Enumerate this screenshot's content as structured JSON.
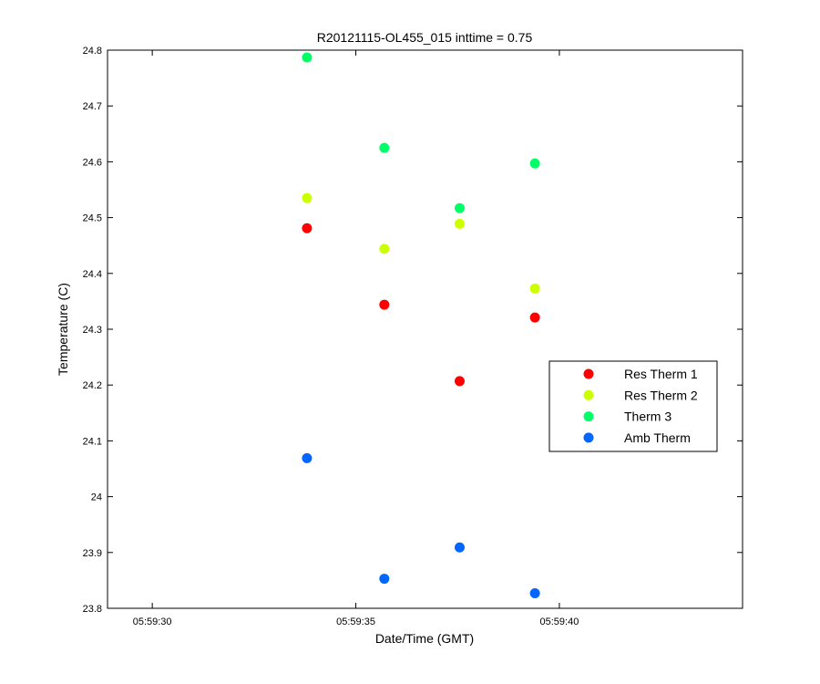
{
  "chart_data": {
    "type": "scatter",
    "title": "R20121115-OL455_015 inttime = 0.75",
    "xlabel": "Date/Time (GMT)",
    "ylabel": "Temperature (C)",
    "x_tick_labels": [
      "05:59:30",
      "05:59:35",
      "05:59:40"
    ],
    "x_tick_seconds": [
      30,
      35,
      40
    ],
    "xlim_seconds": [
      28.9,
      44.5
    ],
    "ylim": [
      23.8,
      24.8
    ],
    "y_ticks": [
      23.8,
      23.9,
      24,
      24.1,
      24.2,
      24.3,
      24.4,
      24.5,
      24.6,
      24.7,
      24.8
    ],
    "y_tick_labels": [
      "23.8",
      "23.9",
      "24",
      "24.1",
      "24.2",
      "24.3",
      "24.4",
      "24.5",
      "24.6",
      "24.7",
      "24.8"
    ],
    "x_time_seconds": [
      33.8,
      35.7,
      37.55,
      39.4
    ],
    "grid": false,
    "legend_position": "right",
    "series": [
      {
        "name": "Res Therm 1",
        "color": "#ff0000",
        "values": [
          24.481,
          24.344,
          24.207,
          24.321
        ]
      },
      {
        "name": "Res Therm 2",
        "color": "#ccff00",
        "values": [
          24.535,
          24.444,
          24.489,
          24.373
        ]
      },
      {
        "name": "Therm 3",
        "color": "#00ff66",
        "values": [
          24.787,
          24.625,
          24.517,
          24.597
        ]
      },
      {
        "name": "Amb Therm",
        "color": "#0066ff",
        "values": [
          24.069,
          23.853,
          23.909,
          23.827
        ]
      }
    ]
  }
}
